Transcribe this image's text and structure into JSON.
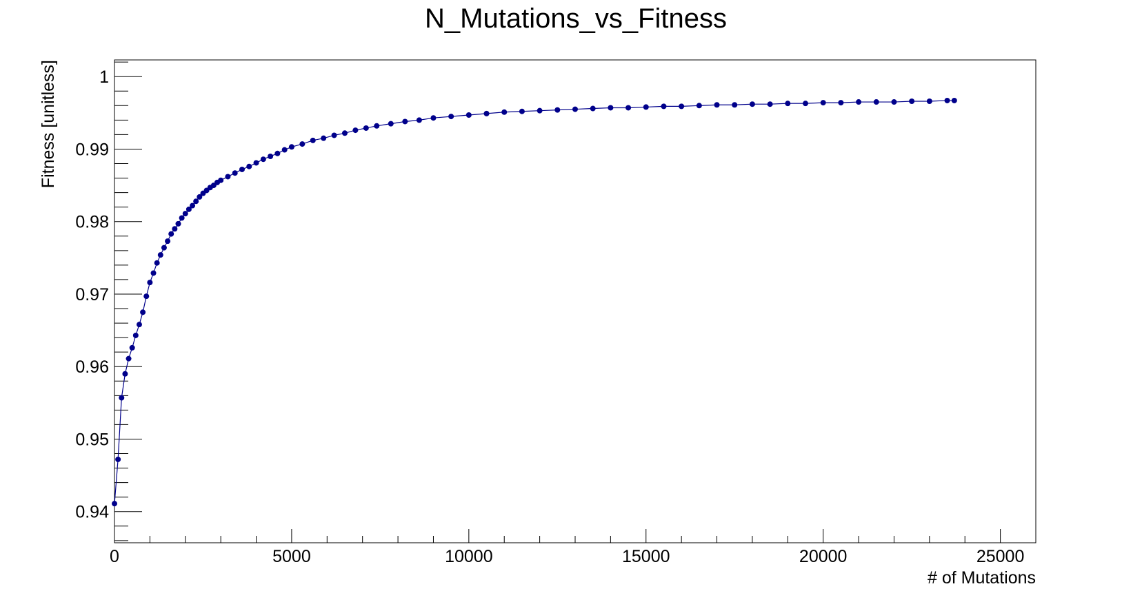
{
  "chart_data": {
    "type": "scatter",
    "title": "N_Mutations_vs_Fitness",
    "xlabel": "# of Mutations",
    "ylabel": "Fitness [unitless]",
    "xlim": [
      0,
      26000
    ],
    "ylim": [
      0.9357,
      1.0023
    ],
    "x_ticks": [
      0,
      5000,
      10000,
      15000,
      20000,
      25000
    ],
    "x_tick_labels": [
      "0",
      "5000",
      "10000",
      "15000",
      "20000",
      "25000"
    ],
    "y_ticks": [
      0.94,
      0.95,
      0.96,
      0.97,
      0.98,
      0.99,
      1.0
    ],
    "y_tick_labels": [
      "0.94",
      "0.95",
      "0.96",
      "0.97",
      "0.98",
      "0.99",
      "1"
    ],
    "grid": false,
    "legend": "none",
    "series": [
      {
        "color": "#00008b",
        "marker": "circle",
        "connect_line": true,
        "points": [
          [
            0,
            0.9411
          ],
          [
            100,
            0.9472
          ],
          [
            200,
            0.9557
          ],
          [
            300,
            0.959
          ],
          [
            400,
            0.9611
          ],
          [
            500,
            0.9626
          ],
          [
            600,
            0.9643
          ],
          [
            700,
            0.9658
          ],
          [
            800,
            0.9675
          ],
          [
            900,
            0.9697
          ],
          [
            1000,
            0.9716
          ],
          [
            1100,
            0.9729
          ],
          [
            1200,
            0.9743
          ],
          [
            1300,
            0.9754
          ],
          [
            1400,
            0.9764
          ],
          [
            1500,
            0.9773
          ],
          [
            1600,
            0.9783
          ],
          [
            1700,
            0.979
          ],
          [
            1800,
            0.9797
          ],
          [
            1900,
            0.9805
          ],
          [
            2000,
            0.9811
          ],
          [
            2100,
            0.9817
          ],
          [
            2200,
            0.9822
          ],
          [
            2300,
            0.9828
          ],
          [
            2400,
            0.9834
          ],
          [
            2500,
            0.9839
          ],
          [
            2600,
            0.9843
          ],
          [
            2700,
            0.9847
          ],
          [
            2800,
            0.985
          ],
          [
            2900,
            0.9854
          ],
          [
            3000,
            0.9857
          ],
          [
            3200,
            0.9862
          ],
          [
            3400,
            0.9867
          ],
          [
            3600,
            0.9872
          ],
          [
            3800,
            0.9876
          ],
          [
            4000,
            0.9881
          ],
          [
            4200,
            0.9886
          ],
          [
            4400,
            0.989
          ],
          [
            4600,
            0.9894
          ],
          [
            4800,
            0.9899
          ],
          [
            5000,
            0.9903
          ],
          [
            5300,
            0.9907
          ],
          [
            5600,
            0.9912
          ],
          [
            5900,
            0.9915
          ],
          [
            6200,
            0.9919
          ],
          [
            6500,
            0.9922
          ],
          [
            6800,
            0.9926
          ],
          [
            7100,
            0.9929
          ],
          [
            7400,
            0.9932
          ],
          [
            7800,
            0.9935
          ],
          [
            8200,
            0.9938
          ],
          [
            8600,
            0.994
          ],
          [
            9000,
            0.9943
          ],
          [
            9500,
            0.9945
          ],
          [
            10000,
            0.9947
          ],
          [
            10500,
            0.9949
          ],
          [
            11000,
            0.9951
          ],
          [
            11500,
            0.9952
          ],
          [
            12000,
            0.9953
          ],
          [
            12500,
            0.9954
          ],
          [
            13000,
            0.9955
          ],
          [
            13500,
            0.9956
          ],
          [
            14000,
            0.9957
          ],
          [
            14500,
            0.9957
          ],
          [
            15000,
            0.9958
          ],
          [
            15500,
            0.9959
          ],
          [
            16000,
            0.9959
          ],
          [
            16500,
            0.996
          ],
          [
            17000,
            0.9961
          ],
          [
            17500,
            0.9961
          ],
          [
            18000,
            0.9962
          ],
          [
            18500,
            0.9962
          ],
          [
            19000,
            0.9963
          ],
          [
            19500,
            0.9963
          ],
          [
            20000,
            0.9964
          ],
          [
            20500,
            0.9964
          ],
          [
            21000,
            0.9965
          ],
          [
            21500,
            0.9965
          ],
          [
            22000,
            0.9965
          ],
          [
            22500,
            0.9966
          ],
          [
            23000,
            0.9966
          ],
          [
            23500,
            0.9967
          ],
          [
            23700,
            0.9967
          ]
        ]
      }
    ]
  }
}
